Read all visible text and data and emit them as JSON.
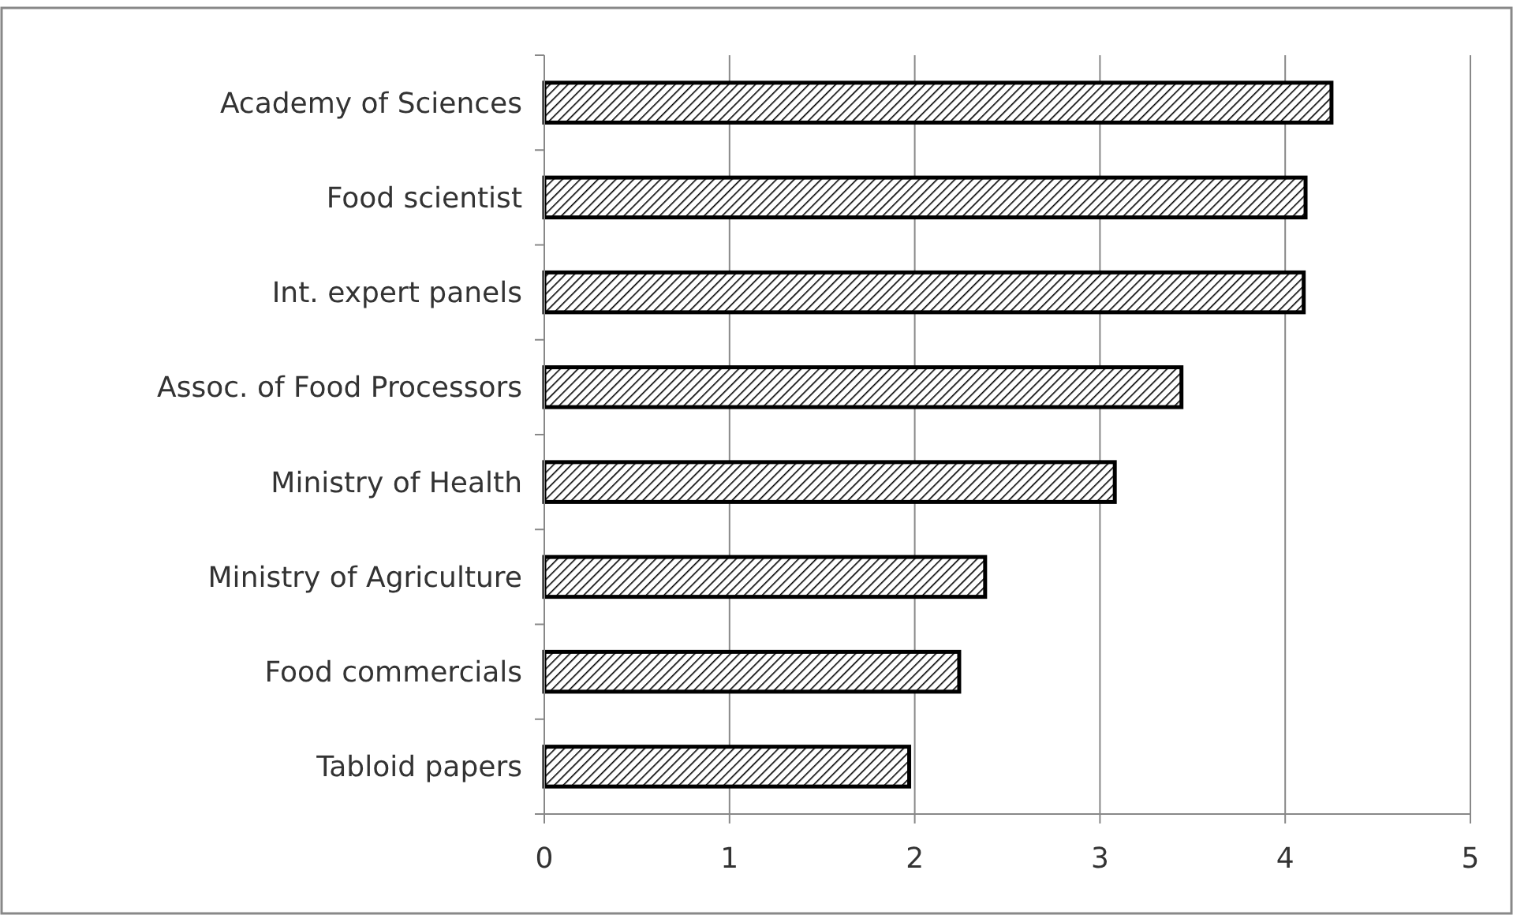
{
  "chart_data": {
    "type": "bar",
    "orientation": "horizontal",
    "categories": [
      "Academy of Sciences",
      "Food scientist",
      "Int. expert panels",
      "Assoc. of Food Processors",
      "Ministry of Health",
      "Ministry of Agriculture",
      "Food commercials",
      "Tabloid papers"
    ],
    "values": [
      4.25,
      4.11,
      4.1,
      3.44,
      3.08,
      2.38,
      2.24,
      1.97
    ],
    "color": "#000000",
    "xlim": [
      0,
      5
    ],
    "xticks": [
      0,
      1,
      2,
      3,
      4,
      5
    ],
    "grid": "x"
  }
}
